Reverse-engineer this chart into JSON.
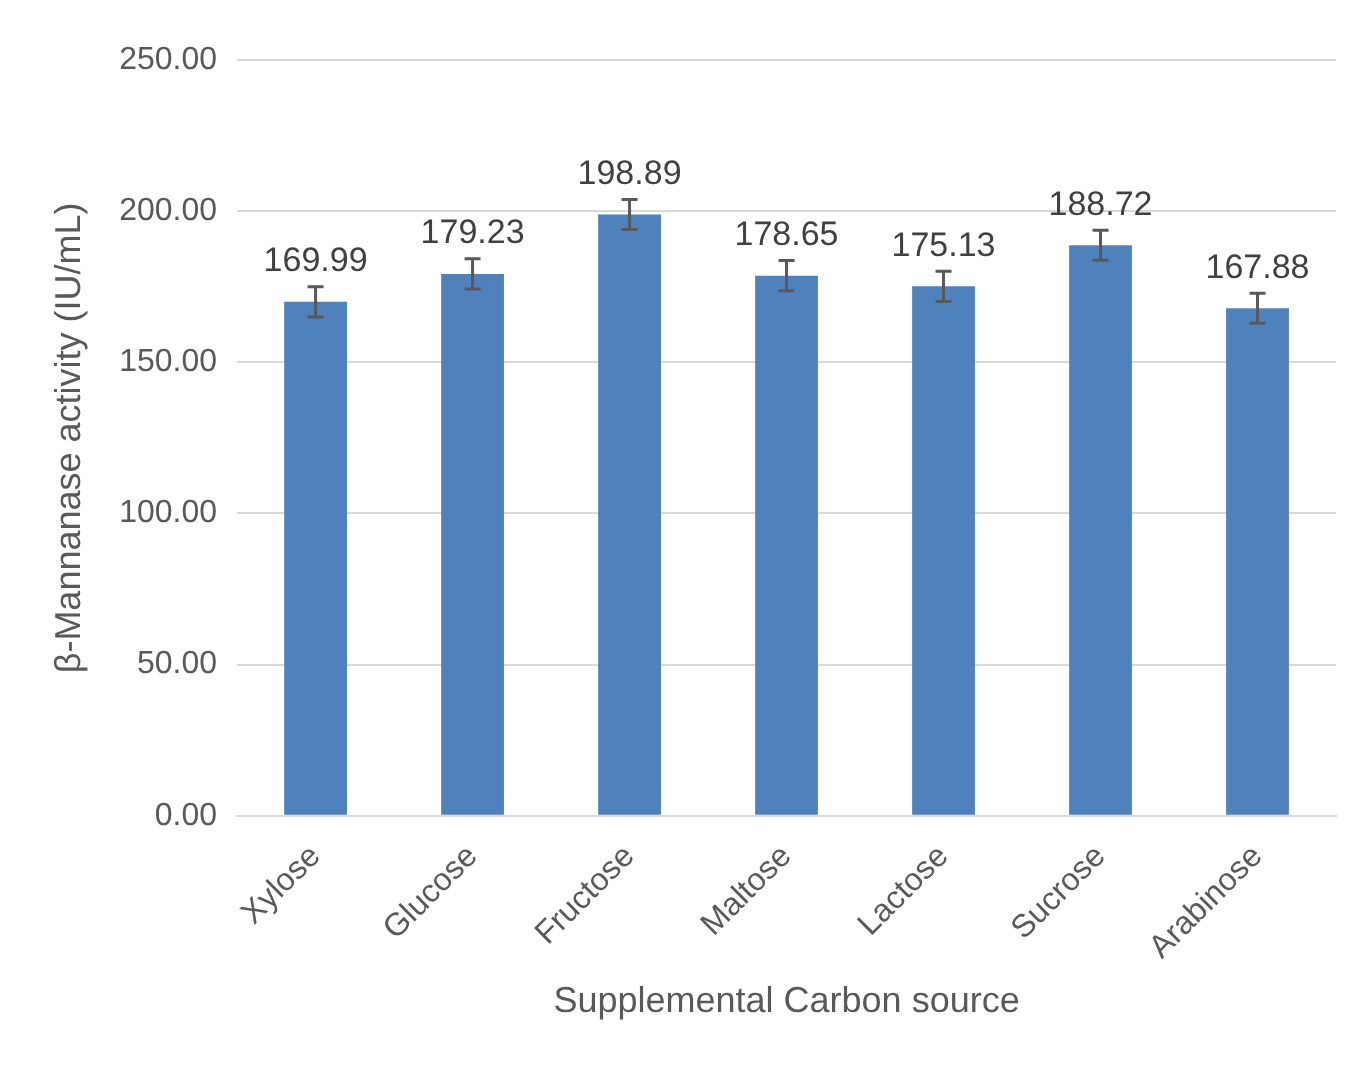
{
  "chart_data": {
    "type": "bar",
    "xlabel": "Supplemental Carbon source",
    "ylabel": "β-Mannanase activity (IU/mL)",
    "categories": [
      "Xylose",
      "Glucose",
      "Fructose",
      "Maltose",
      "Lactose",
      "Sucrose",
      "Arabinose"
    ],
    "values": [
      169.99,
      179.23,
      198.89,
      178.65,
      175.13,
      188.72,
      167.88
    ],
    "errors": [
      5,
      5,
      5,
      5,
      5,
      5,
      5
    ],
    "color": "#4f81bd",
    "data_labels": true,
    "grid": "y",
    "legend": false,
    "ylim": [
      0,
      250
    ],
    "yticks": [
      {
        "value": 0,
        "label": "0.00"
      },
      {
        "value": 50,
        "label": "50.00"
      },
      {
        "value": 100,
        "label": "100.00"
      },
      {
        "value": 150,
        "label": "150.00"
      },
      {
        "value": 200,
        "label": "200.00"
      },
      {
        "value": 250,
        "label": "250.00"
      }
    ]
  }
}
